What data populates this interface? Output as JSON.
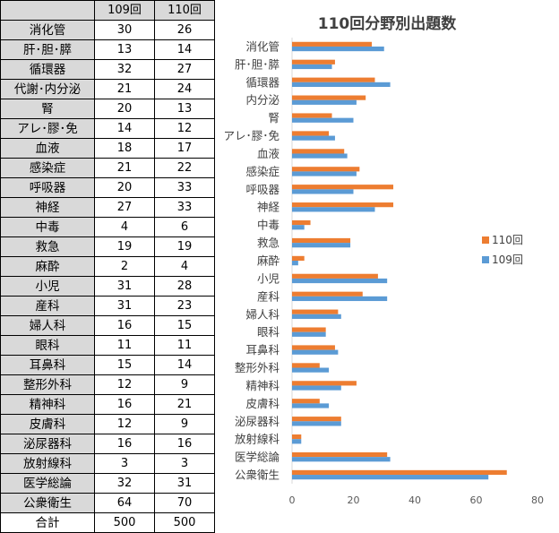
{
  "table": {
    "headers": [
      "",
      "109回",
      "110回"
    ],
    "rows": [
      {
        "label": "消化管",
        "v109": "30",
        "v110": "26"
      },
      {
        "label": "肝･胆･膵",
        "v109": "13",
        "v110": "14"
      },
      {
        "label": "循環器",
        "v109": "32",
        "v110": "27"
      },
      {
        "label": "代謝･内分泌",
        "v109": "21",
        "v110": "24"
      },
      {
        "label": "腎",
        "v109": "20",
        "v110": "13"
      },
      {
        "label": "アレ･膠･免",
        "v109": "14",
        "v110": "12"
      },
      {
        "label": "血液",
        "v109": "18",
        "v110": "17"
      },
      {
        "label": "感染症",
        "v109": "21",
        "v110": "22"
      },
      {
        "label": "呼吸器",
        "v109": "20",
        "v110": "33"
      },
      {
        "label": "神経",
        "v109": "27",
        "v110": "33"
      },
      {
        "label": "中毒",
        "v109": "4",
        "v110": "6"
      },
      {
        "label": "救急",
        "v109": "19",
        "v110": "19"
      },
      {
        "label": "麻酔",
        "v109": "2",
        "v110": "4"
      },
      {
        "label": "小児",
        "v109": "31",
        "v110": "28"
      },
      {
        "label": "産科",
        "v109": "31",
        "v110": "23"
      },
      {
        "label": "婦人科",
        "v109": "16",
        "v110": "15"
      },
      {
        "label": "眼科",
        "v109": "11",
        "v110": "11"
      },
      {
        "label": "耳鼻科",
        "v109": "15",
        "v110": "14"
      },
      {
        "label": "整形外科",
        "v109": "12",
        "v110": "9"
      },
      {
        "label": "精神科",
        "v109": "16",
        "v110": "21"
      },
      {
        "label": "皮膚科",
        "v109": "12",
        "v110": "9"
      },
      {
        "label": "泌尿器科",
        "v109": "16",
        "v110": "16"
      },
      {
        "label": "放射線科",
        "v109": "3",
        "v110": "3"
      },
      {
        "label": "医学総論",
        "v109": "32",
        "v110": "31"
      },
      {
        "label": "公衆衛生",
        "v109": "64",
        "v110": "70"
      }
    ],
    "total": {
      "label": "合計",
      "v109": "500",
      "v110": "500"
    }
  },
  "chart_data": {
    "type": "bar",
    "orientation": "horizontal",
    "title": "110回分野別出題数",
    "categories": [
      "消化管",
      "肝･胆･膵",
      "循環器",
      "内分泌",
      "腎",
      "アレ･膠･免",
      "血液",
      "感染症",
      "呼吸器",
      "神経",
      "中毒",
      "救急",
      "麻酔",
      "小児",
      "産科",
      "婦人科",
      "眼科",
      "耳鼻科",
      "整形外科",
      "精神科",
      "皮膚科",
      "泌尿器科",
      "放射線科",
      "医学総論",
      "公衆衛生"
    ],
    "series": [
      {
        "name": "110回",
        "color": "#ed7d31",
        "values": [
          26,
          14,
          27,
          24,
          13,
          12,
          17,
          22,
          33,
          33,
          6,
          19,
          4,
          28,
          23,
          15,
          11,
          14,
          9,
          21,
          9,
          16,
          3,
          31,
          70
        ]
      },
      {
        "name": "109回",
        "color": "#5b9bd5",
        "values": [
          30,
          13,
          32,
          21,
          20,
          14,
          18,
          21,
          20,
          27,
          4,
          19,
          2,
          31,
          31,
          16,
          11,
          15,
          12,
          16,
          12,
          16,
          3,
          32,
          64
        ]
      }
    ],
    "xlim": [
      0,
      80
    ],
    "xticks": [
      "0",
      "20",
      "40",
      "60",
      "80"
    ],
    "legend_position": "right",
    "grid": false
  }
}
